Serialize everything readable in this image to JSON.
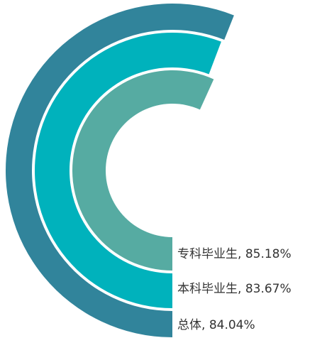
{
  "chart_data": {
    "type": "radial-bar",
    "categories": [
      "总体",
      "本科毕业生",
      "专科毕业生"
    ],
    "values": [
      84.04,
      83.67,
      85.18
    ],
    "value_labels": [
      "84.04%",
      "83.67%",
      "85.18%"
    ],
    "label_separator": ", ",
    "colors": [
      "#31849b",
      "#00b2bc",
      "#56aba2"
    ],
    "ylim": [
      0,
      150
    ]
  }
}
